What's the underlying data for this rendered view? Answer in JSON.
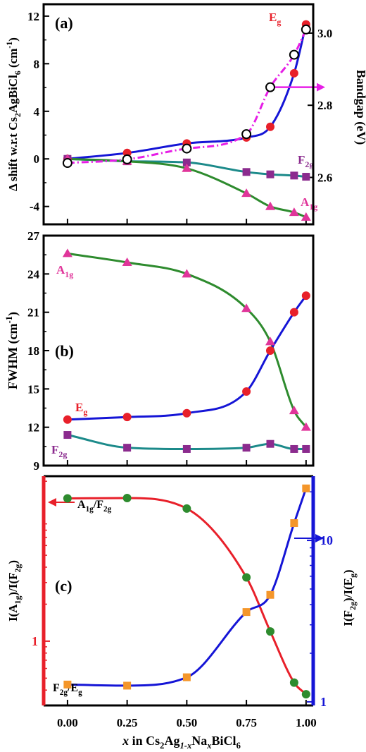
{
  "x_axis": {
    "label_parts": [
      "x",
      " in Cs",
      "2",
      "Ag",
      "1-x",
      "Na",
      "x",
      "BiCl",
      "6"
    ],
    "ticks": [
      0.0,
      0.25,
      0.5,
      0.75,
      1.0
    ],
    "tick_labels": [
      "0.00",
      "0.25",
      "0.50",
      "0.75",
      "1.00"
    ],
    "range": [
      -0.1,
      1.03
    ]
  },
  "chart_data": [
    {
      "type": "line",
      "panel_label": "(a)",
      "ylabel_parts": [
        "Δ shift w.r.t Cs",
        "2",
        "AgBiCl",
        "6",
        " (cm",
        "-1",
        ")"
      ],
      "ylim": [
        -5.5,
        13
      ],
      "yticks": [
        -4,
        0,
        4,
        8,
        12
      ],
      "ytick_labels": [
        "-4",
        "0",
        "4",
        "8",
        "12"
      ],
      "y2label": "Bandgap (eV)",
      "y2lim": [
        2.47,
        3.08
      ],
      "y2ticks": [
        2.6,
        2.8,
        3.0
      ],
      "y2tick_labels": [
        "2.6",
        "2.8",
        "3.0"
      ],
      "series": [
        {
          "name_base": "E",
          "name_sub": "g",
          "axis": "left",
          "color": "#e8202a",
          "line_color": "#1515d6",
          "marker": "circle",
          "x": [
            0,
            0.25,
            0.5,
            0.75,
            0.85,
            0.95,
            1.0
          ],
          "y": [
            0,
            0.5,
            1.3,
            1.8,
            2.7,
            7.2,
            11.3
          ]
        },
        {
          "name_base": "F",
          "name_sub": "2g",
          "axis": "left",
          "color": "#8b2b8e",
          "line_color": "#1c8a8a",
          "marker": "square",
          "x": [
            0,
            0.25,
            0.5,
            0.75,
            0.85,
            0.95,
            1.0
          ],
          "y": [
            0,
            -0.2,
            -0.3,
            -1.1,
            -1.3,
            -1.4,
            -1.5
          ]
        },
        {
          "name_base": "A",
          "name_sub": "1g",
          "axis": "left",
          "color": "#e0359a",
          "line_color": "#2e8b2e",
          "marker": "triangle",
          "x": [
            0,
            0.25,
            0.5,
            0.75,
            0.85,
            0.95,
            1.0
          ],
          "y": [
            0,
            -0.2,
            -0.8,
            -2.9,
            -4.0,
            -4.5,
            -4.9
          ]
        },
        {
          "name_base": "",
          "name_sub": "",
          "axis": "right",
          "color": "#000000",
          "line_color": "#e61ee6",
          "marker": "open-circle",
          "x": [
            0,
            0.25,
            0.5,
            0.75,
            0.85,
            0.95,
            1.0
          ],
          "y": [
            2.64,
            2.65,
            2.68,
            2.72,
            2.85,
            2.94,
            3.01
          ]
        }
      ]
    },
    {
      "type": "line",
      "panel_label": "(b)",
      "ylabel_parts": [
        "FWHM (cm",
        "-1",
        ")"
      ],
      "ylim": [
        9,
        27
      ],
      "yticks": [
        9,
        12,
        15,
        18,
        21,
        24,
        27
      ],
      "ytick_labels": [
        "9",
        "12",
        "15",
        "18",
        "21",
        "24",
        "27"
      ],
      "series": [
        {
          "name_base": "A",
          "name_sub": "1g",
          "color": "#e0359a",
          "line_color": "#2e8b2e",
          "marker": "triangle",
          "x": [
            0,
            0.25,
            0.5,
            0.75,
            0.85,
            0.95,
            1.0
          ],
          "y": [
            25.6,
            24.9,
            24.0,
            21.3,
            18.7,
            13.3,
            12.0
          ]
        },
        {
          "name_base": "E",
          "name_sub": "g",
          "color": "#e8202a",
          "line_color": "#1515d6",
          "marker": "circle",
          "x": [
            0,
            0.25,
            0.5,
            0.75,
            0.85,
            0.95,
            1.0
          ],
          "y": [
            12.6,
            12.8,
            13.1,
            14.8,
            18.0,
            21.0,
            22.3
          ]
        },
        {
          "name_base": "F",
          "name_sub": "2g",
          "color": "#8b2b8e",
          "line_color": "#1c8a8a",
          "marker": "square",
          "x": [
            0,
            0.25,
            0.5,
            0.75,
            0.85,
            0.95,
            1.0
          ],
          "y": [
            11.4,
            10.4,
            10.3,
            10.4,
            10.7,
            10.3,
            10.3
          ]
        }
      ]
    },
    {
      "type": "line",
      "panel_label": "(c)",
      "ylabel_parts": [
        "I(A",
        "1g",
        ")/I(F",
        "2g",
        ")"
      ],
      "yscale": "log",
      "ylim": [
        0.3,
        22
      ],
      "yticks": [
        1
      ],
      "ytick_labels": [
        "1"
      ],
      "y2label_parts": [
        "I(F",
        "2g",
        ")/I(E",
        "g",
        ")"
      ],
      "y2scale": "log",
      "y2lim": [
        0.95,
        25
      ],
      "y2ticks": [
        1,
        10
      ],
      "y2tick_labels": [
        "1",
        "10"
      ],
      "series": [
        {
          "name_parts": [
            "A",
            "1g",
            "/F",
            "2g"
          ],
          "axis": "left",
          "color": "#2e8b2e",
          "line_color": "#e8202a",
          "marker": "circle",
          "x": [
            0,
            0.25,
            0.5,
            0.75,
            0.85,
            0.95,
            1.0
          ],
          "y": [
            14.5,
            14.6,
            12.0,
            3.3,
            1.2,
            0.46,
            0.37
          ]
        },
        {
          "name_parts": [
            "F",
            "2g",
            "/E",
            "g"
          ],
          "axis": "right",
          "color": "#f4962a",
          "line_color": "#1515d6",
          "marker": "square",
          "x": [
            0,
            0.25,
            0.5,
            0.75,
            0.85,
            0.95,
            1.0
          ],
          "y": [
            1.28,
            1.26,
            1.42,
            3.6,
            4.6,
            12.8,
            21.0
          ]
        }
      ]
    }
  ]
}
